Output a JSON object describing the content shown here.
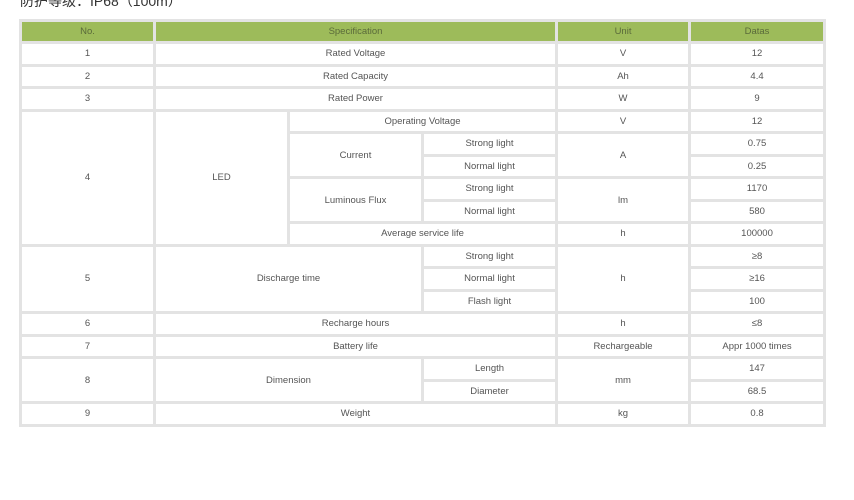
{
  "caption": "防护等级：IP68（100m）",
  "header": {
    "no": "No.",
    "spec": "Specification",
    "unit": "Unit",
    "data": "Datas"
  },
  "colors": {
    "header_bg": "#9dbb5a",
    "border": "#e3e3e3"
  },
  "rows": {
    "r1": {
      "no": "1",
      "spec": "Rated Voltage",
      "unit": "V",
      "data": "12"
    },
    "r2": {
      "no": "2",
      "spec": "Rated Capacity",
      "unit": "Ah",
      "data": "4.4"
    },
    "r3": {
      "no": "3",
      "spec": "Rated Power",
      "unit": "W",
      "data": "9"
    },
    "led": {
      "no": "4",
      "spec": "LED",
      "op_voltage": {
        "label": "Operating Voltage",
        "unit": "V",
        "data": "12"
      },
      "current": {
        "label": "Current",
        "unit": "A",
        "strong": "Strong light",
        "strong_data": "0.75",
        "normal": "Normal light",
        "normal_data": "0.25"
      },
      "flux": {
        "label": "Luminous Flux",
        "unit": "lm",
        "strong": "Strong light",
        "strong_data": "1170",
        "normal": "Normal light",
        "normal_data": "580"
      },
      "life": {
        "label": "Average service life",
        "unit": "h",
        "data": "100000"
      }
    },
    "discharge": {
      "no": "5",
      "spec": "Discharge time",
      "unit": "h",
      "strong": "Strong light",
      "strong_data": "≥8",
      "normal": "Normal light",
      "normal_data": "≥16",
      "flash": "Flash light",
      "flash_data": "100"
    },
    "r6": {
      "no": "6",
      "spec": "Recharge hours",
      "unit": "h",
      "data": "≤8"
    },
    "r7": {
      "no": "7",
      "spec": "Battery life",
      "unit": "Rechargeable",
      "data": "Appr 1000 times"
    },
    "dim": {
      "no": "8",
      "spec": "Dimension",
      "unit": "mm",
      "length": "Length",
      "length_data": "147",
      "diameter": "Diameter",
      "diameter_data": "68.5"
    },
    "r9": {
      "no": "9",
      "spec": "Weight",
      "unit": "kg",
      "data": "0.8"
    }
  }
}
